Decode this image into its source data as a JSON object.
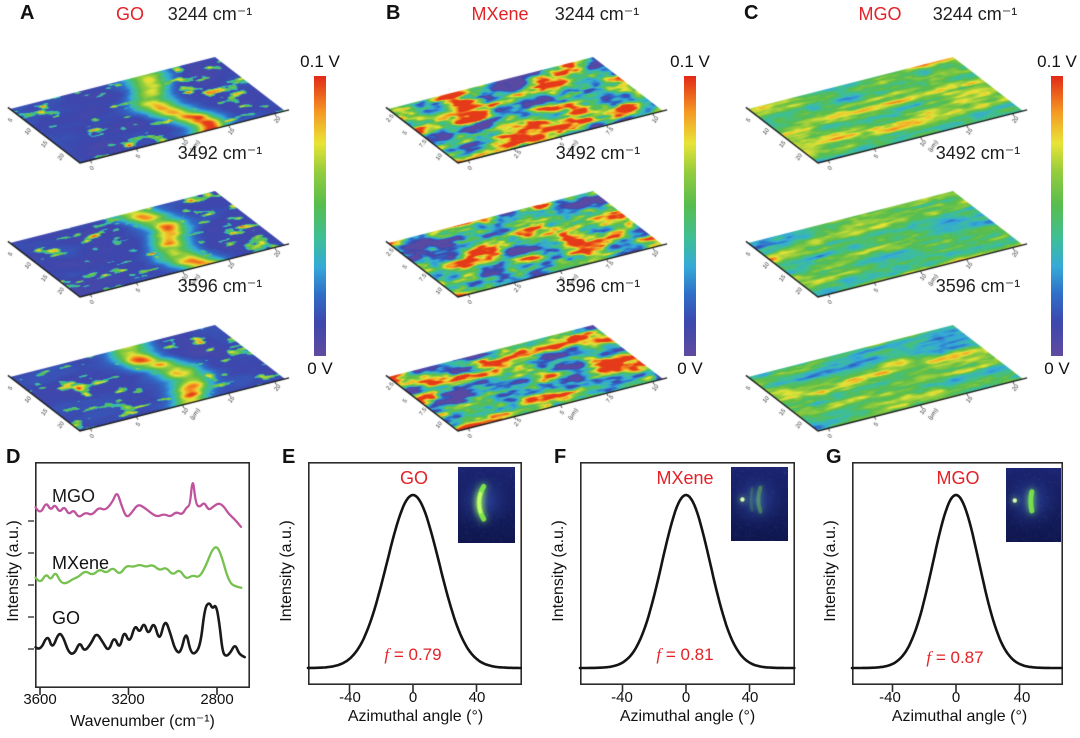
{
  "colorbar": {
    "top": "0.1 V",
    "bottom": "0 V"
  },
  "colors": {
    "accent_red": "#e32227",
    "curve_black": "#1a1a1a",
    "curve_green": "#76c14f",
    "curve_magenta": "#c0539d"
  },
  "top_panels": [
    {
      "letter": "A",
      "material": "GO",
      "surface_style": "GO",
      "wavenumbers": [
        "3244 cm⁻¹",
        "3492 cm⁻¹",
        "3596 cm⁻¹"
      ],
      "left_ticks": [
        "5",
        "10",
        "15",
        "20"
      ],
      "right_ticks": [
        "0",
        "5",
        "10",
        "15",
        "20"
      ],
      "axis_unit": "(µm)"
    },
    {
      "letter": "B",
      "material": "MXene",
      "surface_style": "MXene",
      "wavenumbers": [
        "3244 cm⁻¹",
        "3492 cm⁻¹",
        "3596 cm⁻¹"
      ],
      "left_ticks": [
        "2.5",
        "5",
        "7.5",
        "10"
      ],
      "right_ticks": [
        "0",
        "2.5",
        "5",
        "7.5",
        "10"
      ],
      "axis_unit": "(µm)"
    },
    {
      "letter": "C",
      "material": "MGO",
      "surface_style": "MGO",
      "wavenumbers": [
        "3244 cm⁻¹",
        "3492 cm⁻¹",
        "3596 cm⁻¹"
      ],
      "left_ticks": [
        "5",
        "10",
        "15",
        "20"
      ],
      "right_ticks": [
        "0",
        "5",
        "10",
        "15",
        "20"
      ],
      "axis_unit": "(µm)"
    }
  ],
  "bottom_panels": {
    "D": {
      "letter": "D",
      "ylabel": "Intensity (a.u.)",
      "xlabel": "Wavenumber (cm⁻¹)",
      "xticks": [
        "3600",
        "3200",
        "2800"
      ],
      "curve_labels": [
        "MGO",
        "MXene",
        "GO"
      ]
    },
    "E": {
      "letter": "E",
      "material": "GO",
      "f_sym": "f",
      "f_eq": " = 0.79",
      "ylabel": "Intensity (a.u.)",
      "xlabel": "Azimuthal angle (°)",
      "xticks": [
        "-40",
        "0",
        "40"
      ]
    },
    "F": {
      "letter": "F",
      "material": "MXene",
      "f_sym": "f",
      "f_eq": " = 0.81",
      "ylabel": "Intensity (a.u.)",
      "xlabel": "Azimuthal angle (°)",
      "xticks": [
        "-40",
        "0",
        "40"
      ]
    },
    "G": {
      "letter": "G",
      "material": "MGO",
      "f_sym": "f",
      "f_eq": " = 0.87",
      "ylabel": "Intensity (a.u.)",
      "xlabel": "Azimuthal angle (°)",
      "xticks": [
        "-40",
        "0",
        "40"
      ]
    }
  },
  "chart_data": [
    {
      "id": "A",
      "type": "heatmap",
      "subtype": "3d-surface-maps",
      "material": "GO",
      "maps_wavenumbers_cm-1": [
        3244,
        3492,
        3596
      ],
      "value_range_V": [
        0,
        0.1
      ],
      "xy_range_um": [
        0,
        20
      ],
      "palette": "rainbow",
      "description": "mostly low (purple) with strong high (red) band right of center"
    },
    {
      "id": "B",
      "type": "heatmap",
      "subtype": "3d-surface-maps",
      "material": "MXene",
      "maps_wavenumbers_cm-1": [
        3244,
        3492,
        3596
      ],
      "value_range_V": [
        0,
        0.1
      ],
      "xy_range_um": [
        0,
        10
      ],
      "palette": "rainbow",
      "description": "mid (green) with low blue blobs and high red/yellow spots"
    },
    {
      "id": "C",
      "type": "heatmap",
      "subtype": "3d-surface-maps",
      "material": "MGO",
      "maps_wavenumbers_cm-1": [
        3244,
        3492,
        3596
      ],
      "value_range_V": [
        0,
        0.1
      ],
      "xy_range_um": [
        0,
        20
      ],
      "palette": "rainbow",
      "description": "uniform green/cyan with horizontal orange streaks"
    },
    {
      "id": "D",
      "type": "line",
      "xlabel": "Wavenumber (cm⁻¹)",
      "ylabel": "Intensity (a.u.)",
      "x_ticks": [
        3600,
        3200,
        2800
      ],
      "x_reversed": true,
      "x_range": [
        3630,
        2660
      ],
      "series": [
        {
          "name": "GO",
          "color": "#1a1a1a",
          "points": [
            [
              3620,
              0.22
            ],
            [
              3600,
              0.15
            ],
            [
              3565,
              0.45
            ],
            [
              3545,
              0.18
            ],
            [
              3515,
              0.48
            ],
            [
              3495,
              0.4
            ],
            [
              3470,
              0.12
            ],
            [
              3445,
              0.1
            ],
            [
              3420,
              0.32
            ],
            [
              3400,
              0.14
            ],
            [
              3370,
              0.28
            ],
            [
              3345,
              0.48
            ],
            [
              3315,
              0.3
            ],
            [
              3290,
              0.14
            ],
            [
              3265,
              0.42
            ],
            [
              3240,
              0.18
            ],
            [
              3220,
              0.52
            ],
            [
              3195,
              0.28
            ],
            [
              3170,
              0.62
            ],
            [
              3150,
              0.46
            ],
            [
              3130,
              0.66
            ],
            [
              3110,
              0.42
            ],
            [
              3085,
              0.68
            ],
            [
              3060,
              0.3
            ],
            [
              3035,
              0.72
            ],
            [
              3010,
              0.45
            ],
            [
              2990,
              0.18
            ],
            [
              2965,
              0.1
            ],
            [
              2940,
              0.52
            ],
            [
              2920,
              0.14
            ],
            [
              2900,
              0.1
            ],
            [
              2875,
              0.25
            ],
            [
              2855,
              0.9
            ],
            [
              2835,
              1.0
            ],
            [
              2820,
              0.88
            ],
            [
              2805,
              0.96
            ],
            [
              2790,
              0.66
            ],
            [
              2775,
              0.14
            ],
            [
              2760,
              0.06
            ],
            [
              2740,
              0.12
            ],
            [
              2718,
              0.28
            ],
            [
              2700,
              0.1
            ],
            [
              2675,
              0.05
            ]
          ]
        },
        {
          "name": "MXene",
          "color": "#76c14f",
          "points": [
            [
              3620,
              0.28
            ],
            [
              3600,
              0.14
            ],
            [
              3572,
              0.38
            ],
            [
              3552,
              0.22
            ],
            [
              3530,
              0.42
            ],
            [
              3508,
              0.18
            ],
            [
              3482,
              0.14
            ],
            [
              3455,
              0.24
            ],
            [
              3425,
              0.3
            ],
            [
              3395,
              0.44
            ],
            [
              3362,
              0.33
            ],
            [
              3330,
              0.48
            ],
            [
              3300,
              0.38
            ],
            [
              3270,
              0.52
            ],
            [
              3240,
              0.34
            ],
            [
              3210,
              0.56
            ],
            [
              3180,
              0.52
            ],
            [
              3150,
              0.58
            ],
            [
              3120,
              0.52
            ],
            [
              3090,
              0.58
            ],
            [
              3060,
              0.44
            ],
            [
              3030,
              0.52
            ],
            [
              3000,
              0.33
            ],
            [
              2970,
              0.48
            ],
            [
              2940,
              0.24
            ],
            [
              2910,
              0.34
            ],
            [
              2880,
              0.28
            ],
            [
              2850,
              0.55
            ],
            [
              2822,
              0.92
            ],
            [
              2800,
              1.0
            ],
            [
              2780,
              0.78
            ],
            [
              2758,
              0.38
            ],
            [
              2738,
              0.14
            ],
            [
              2715,
              0.08
            ],
            [
              2690,
              0.05
            ]
          ]
        },
        {
          "name": "MGO",
          "color": "#c0539d",
          "points": [
            [
              3620,
              0.42
            ],
            [
              3600,
              0.28
            ],
            [
              3572,
              0.52
            ],
            [
              3552,
              0.36
            ],
            [
              3532,
              0.48
            ],
            [
              3512,
              0.32
            ],
            [
              3490,
              0.44
            ],
            [
              3470,
              0.28
            ],
            [
              3448,
              0.38
            ],
            [
              3425,
              0.22
            ],
            [
              3395,
              0.33
            ],
            [
              3365,
              0.27
            ],
            [
              3335,
              0.42
            ],
            [
              3305,
              0.36
            ],
            [
              3272,
              0.52
            ],
            [
              3252,
              0.72
            ],
            [
              3232,
              0.46
            ],
            [
              3210,
              0.22
            ],
            [
              3185,
              0.32
            ],
            [
              3158,
              0.48
            ],
            [
              3130,
              0.42
            ],
            [
              3100,
              0.32
            ],
            [
              3070,
              0.24
            ],
            [
              3040,
              0.3
            ],
            [
              3010,
              0.24
            ],
            [
              2985,
              0.34
            ],
            [
              2958,
              0.28
            ],
            [
              2938,
              0.42
            ],
            [
              2922,
              0.45
            ],
            [
              2910,
              1.0
            ],
            [
              2896,
              0.48
            ],
            [
              2878,
              0.42
            ],
            [
              2858,
              0.52
            ],
            [
              2838,
              0.36
            ],
            [
              2815,
              0.44
            ],
            [
              2792,
              0.5
            ],
            [
              2770,
              0.44
            ],
            [
              2748,
              0.3
            ],
            [
              2720,
              0.2
            ],
            [
              2692,
              0.06
            ]
          ]
        }
      ]
    },
    {
      "id": "E",
      "type": "line",
      "curve": "gaussian",
      "material": "GO",
      "f": 0.79,
      "center_deg": 0,
      "sigma_deg": 16.5,
      "x_ticks": [
        -40,
        0,
        40
      ],
      "x_range": [
        -66,
        69
      ],
      "xlabel": "Azimuthal angle (°)",
      "ylabel": "Intensity (a.u.)",
      "inset": "crescent"
    },
    {
      "id": "F",
      "type": "line",
      "curve": "gaussian",
      "material": "MXene",
      "f": 0.81,
      "center_deg": 0,
      "sigma_deg": 15.2,
      "x_ticks": [
        -40,
        0,
        40
      ],
      "x_range": [
        -66,
        69
      ],
      "xlabel": "Azimuthal angle (°)",
      "ylabel": "Intensity (a.u.)",
      "inset": "dot-arcs"
    },
    {
      "id": "G",
      "type": "line",
      "curve": "gaussian",
      "material": "MGO",
      "f": 0.87,
      "center_deg": 0,
      "sigma_deg": 14.6,
      "x_ticks": [
        -40,
        0,
        40
      ],
      "x_range": [
        -66,
        69
      ],
      "xlabel": "Azimuthal angle (°)",
      "ylabel": "Intensity (a.u.)",
      "inset": "dot-bar"
    }
  ]
}
